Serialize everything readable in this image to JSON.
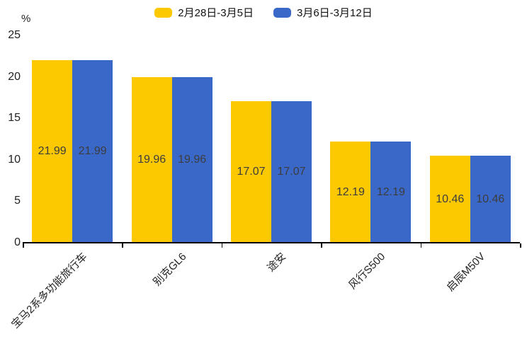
{
  "chart_data": {
    "type": "bar",
    "title": "",
    "xlabel": "",
    "ylabel": "%",
    "categories": [
      "宝马2系多功能旅行车",
      "别克GL6",
      "途安",
      "风行S500",
      "启辰M50V"
    ],
    "series": [
      {
        "name": "2月28日-3月5日",
        "color": "#FCC800",
        "values": [
          21.99,
          19.96,
          17.07,
          12.19,
          10.46
        ]
      },
      {
        "name": "3月6日-3月12日",
        "color": "#3A68C8",
        "values": [
          21.99,
          19.96,
          17.07,
          12.19,
          10.46
        ]
      }
    ],
    "ylim": [
      0,
      25
    ],
    "yticks": [
      0,
      5,
      10,
      15,
      20,
      25
    ],
    "grid": false,
    "legend_position": "top-center",
    "value_labels": "inside-center",
    "value_label_color": "#3d3d3d",
    "axis_color": "#000000",
    "background_color": "#ffffff"
  }
}
